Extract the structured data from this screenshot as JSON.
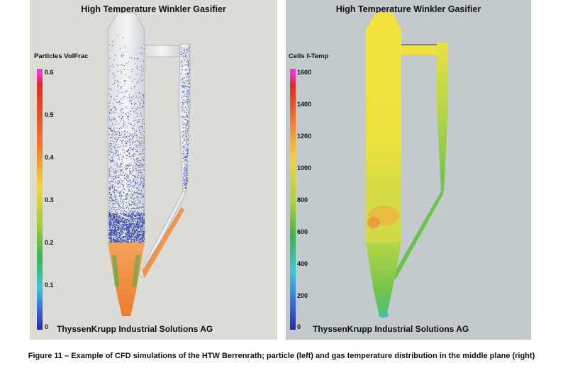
{
  "left_panel": {
    "title": "High Temperature Winkler Gasifier",
    "legend_label": "Particles VolFrac",
    "ticks": [
      "0.6",
      "0.5",
      "0.4",
      "0.3",
      "0.2",
      "0.1",
      "0"
    ],
    "footer": "ThyssenKrupp Industrial Solutions AG"
  },
  "right_panel": {
    "title": "High Temperature Winkler Gasifier",
    "legend_label": "Cells f-Temp",
    "ticks": [
      "1600",
      "1400",
      "1200",
      "1000",
      "800",
      "600",
      "400",
      "200",
      "0"
    ],
    "footer": "ThyssenKrupp Industrial Solutions AG"
  },
  "caption": "Figure 11 – Example of CFD simulations of the HTW Berrenrath; particle (left) and gas temperature distribution in the middle plane (right)",
  "colors": {
    "left_background": "#dcdcd6",
    "right_background": "#c2cace",
    "particles": "#2b3fa8",
    "dense_bed": "#f07a30",
    "gas_temperature": "#f2e23c",
    "riser_temperature": "#6cc24a"
  }
}
